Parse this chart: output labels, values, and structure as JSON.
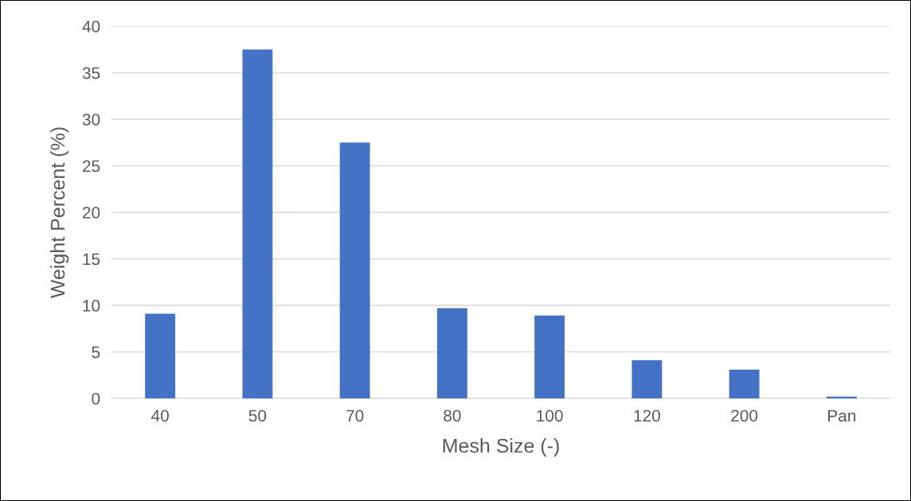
{
  "chart_data": {
    "type": "bar",
    "xlabel": "Mesh Size (-)",
    "ylabel": "Weight Percent (%)",
    "categories": [
      "40",
      "50",
      "70",
      "80",
      "100",
      "120",
      "200",
      "Pan"
    ],
    "values": [
      9.1,
      37.5,
      27.5,
      9.7,
      8.9,
      4.1,
      3.1,
      0.2
    ],
    "color": "#4472c4",
    "ylim": [
      0,
      40
    ],
    "yticks": [
      0,
      5,
      10,
      15,
      20,
      25,
      30,
      35,
      40
    ],
    "grid": "y",
    "legend": false
  }
}
